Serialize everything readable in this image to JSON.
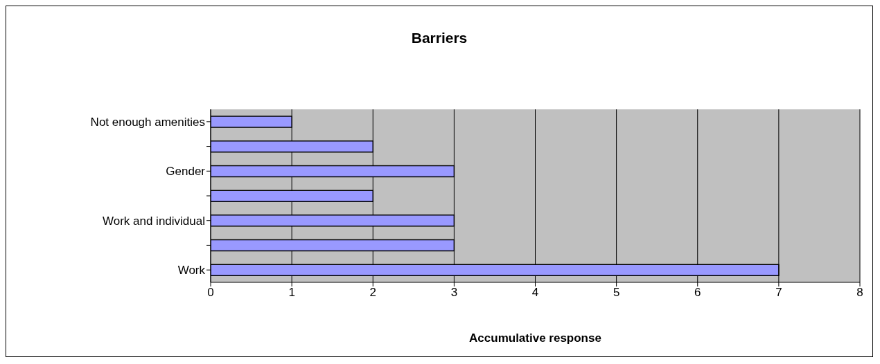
{
  "chart_data": {
    "type": "bar",
    "orientation": "horizontal",
    "title": "Barriers",
    "xlabel": "Accumulative response",
    "categories": [
      "Not enough amenities",
      null,
      "Gender",
      null,
      "Work and individual",
      null,
      "Work"
    ],
    "values": [
      1,
      2,
      3,
      2,
      3,
      3,
      7
    ],
    "color": "#9999ff",
    "xlim": [
      0,
      8
    ],
    "xticks": [
      0,
      1,
      2,
      3,
      4,
      5,
      6,
      7,
      8
    ],
    "grid": "x"
  }
}
